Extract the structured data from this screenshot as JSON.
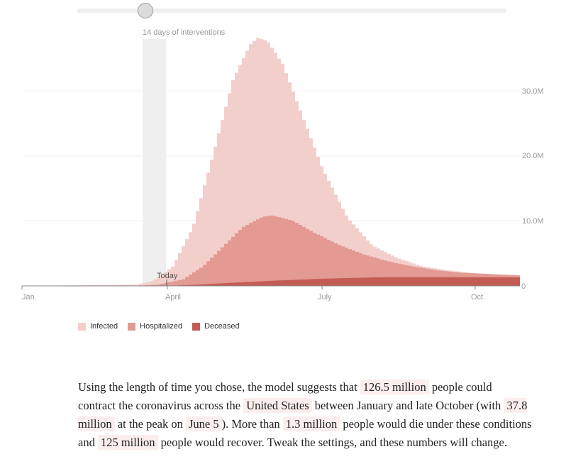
{
  "slider": {
    "label": "14 days of interventions",
    "value_days": 14
  },
  "today_label": "Today",
  "chart_data": {
    "type": "area",
    "x_tick_labels": [
      "Jan.",
      "April",
      "July",
      "Oct."
    ],
    "y_tick_labels": [
      "0",
      "10.0M",
      "20.0M",
      "30.0M"
    ],
    "y_ticks": [
      0,
      10,
      20,
      30
    ],
    "ylim": [
      0,
      38
    ],
    "y_unit": "millions",
    "grid": true,
    "legend_position": "bottom-left",
    "series": [
      {
        "name": "Infected",
        "color": "#f2cfcb",
        "points": [
          [
            0,
            0
          ],
          [
            2.3,
            0.2
          ],
          [
            2.6,
            0.8
          ],
          [
            3.0,
            3.0
          ],
          [
            3.4,
            9
          ],
          [
            3.8,
            20
          ],
          [
            4.2,
            31.5
          ],
          [
            4.55,
            37
          ],
          [
            4.7,
            38
          ],
          [
            4.9,
            37.5
          ],
          [
            5.2,
            34
          ],
          [
            5.6,
            26
          ],
          [
            6.0,
            18
          ],
          [
            6.5,
            10.5
          ],
          [
            7.0,
            6.2
          ],
          [
            7.5,
            4.3
          ],
          [
            8.0,
            3.0
          ],
          [
            8.5,
            2.4
          ],
          [
            9.0,
            2.0
          ],
          [
            9.6,
            1.7
          ],
          [
            10.0,
            1.6
          ]
        ]
      },
      {
        "name": "Hospitalized",
        "color": "#e29a93",
        "points": [
          [
            0,
            0
          ],
          [
            2.3,
            0.05
          ],
          [
            2.7,
            0.2
          ],
          [
            3.2,
            1.0
          ],
          [
            3.6,
            3.0
          ],
          [
            4.0,
            6.0
          ],
          [
            4.4,
            9.0
          ],
          [
            4.8,
            10.6
          ],
          [
            5.0,
            10.8
          ],
          [
            5.4,
            10.0
          ],
          [
            5.8,
            8.3
          ],
          [
            6.3,
            6.4
          ],
          [
            6.8,
            4.9
          ],
          [
            7.3,
            3.8
          ],
          [
            7.8,
            3.0
          ],
          [
            8.3,
            2.4
          ],
          [
            8.8,
            2.0
          ],
          [
            9.4,
            1.8
          ],
          [
            10.0,
            1.6
          ]
        ]
      },
      {
        "name": "Deceased",
        "color": "#c45c56",
        "points": [
          [
            0,
            0
          ],
          [
            2.5,
            0
          ],
          [
            3.0,
            0.05
          ],
          [
            3.5,
            0.2
          ],
          [
            4.0,
            0.4
          ],
          [
            4.5,
            0.6
          ],
          [
            5.0,
            0.8
          ],
          [
            5.5,
            0.95
          ],
          [
            6.0,
            1.1
          ],
          [
            6.5,
            1.2
          ],
          [
            7.0,
            1.3
          ],
          [
            7.5,
            1.35
          ],
          [
            8.0,
            1.35
          ],
          [
            10.0,
            1.3
          ]
        ]
      }
    ]
  },
  "legend": [
    {
      "label": "Infected",
      "color": "#f2cfcb"
    },
    {
      "label": "Hospitalized",
      "color": "#e29a93"
    },
    {
      "label": "Deceased",
      "color": "#c45c56"
    }
  ],
  "summary": {
    "t1": "Using the length of time you chose, the model suggests that ",
    "total_infected": "126.5 million",
    "t2": " people could contract the coronavirus across the ",
    "location": "United States",
    "t3": " between January and late October (with ",
    "peak_infected": "37.8 million",
    "t4": " at the peak on ",
    "peak_date": "June 5",
    "t5": "). More than ",
    "deaths": "1.3 million",
    "t6": " people would die under these conditions and ",
    "recovered": "125 million",
    "t7": " people would recover. Tweak the settings, and these numbers will change."
  }
}
